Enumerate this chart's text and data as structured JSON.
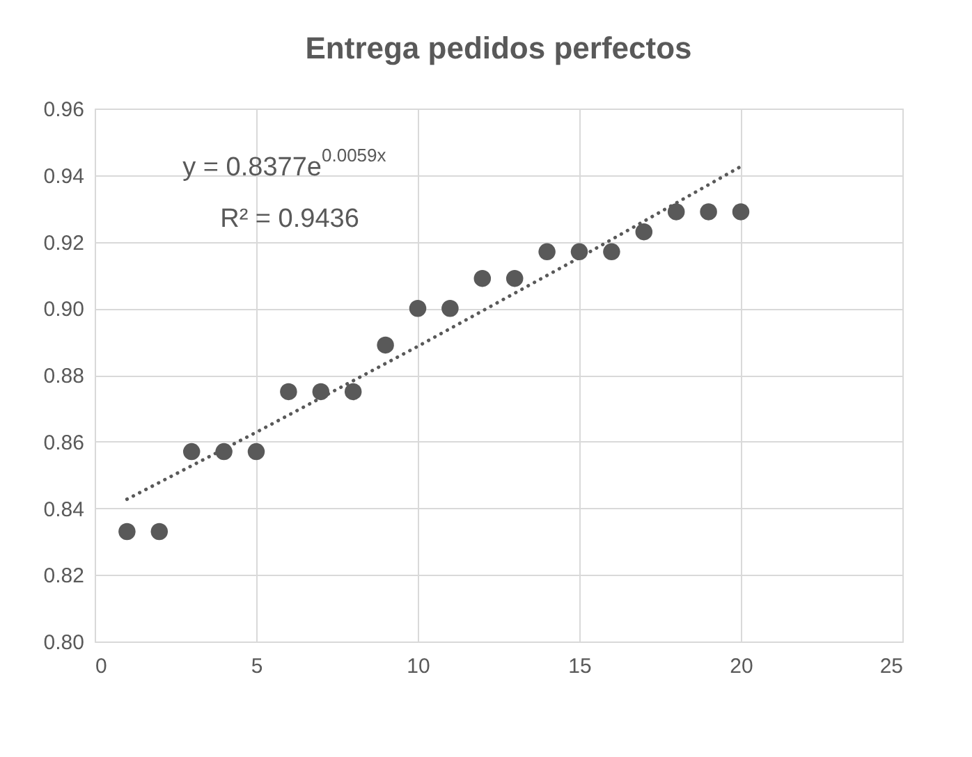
{
  "chart_data": {
    "type": "scatter",
    "title": "Entrega pedidos perfectos",
    "x": [
      1,
      2,
      3,
      4,
      5,
      6,
      7,
      8,
      9,
      10,
      11,
      12,
      13,
      14,
      15,
      16,
      17,
      18,
      19,
      20
    ],
    "series": [
      {
        "color": "#595959",
        "marker": "circle",
        "values": [
          0.833,
          0.833,
          0.857,
          0.857,
          0.857,
          0.875,
          0.875,
          0.875,
          0.889,
          0.9,
          0.9,
          0.909,
          0.909,
          0.917,
          0.917,
          0.917,
          0.923,
          0.929,
          0.929,
          0.929
        ]
      },
      {
        "type": "line",
        "color": "#595959",
        "line_style": "dotted",
        "marker": "none",
        "x": [
          1,
          5,
          10,
          15,
          20
        ],
        "values": [
          0.8427,
          0.8628,
          0.8886,
          0.9152,
          0.9426
        ]
      }
    ],
    "annotations": [
      "y = 0.8377e$^{0.0059x}$",
      "R² = 0.9436"
    ],
    "xlim": [
      0,
      25
    ],
    "xticks": [
      0,
      5,
      10,
      15,
      20,
      25
    ],
    "ylim": [
      0.8,
      0.96
    ],
    "yticks": [
      {
        "value": 0.8,
        "label": "0.80"
      },
      {
        "value": 0.82,
        "label": "0.82"
      },
      {
        "value": 0.84,
        "label": "0.84"
      },
      {
        "value": 0.86,
        "label": "0.86"
      },
      {
        "value": 0.88,
        "label": "0.88"
      },
      {
        "value": 0.9,
        "label": "0.90"
      },
      {
        "value": 0.92,
        "label": "0.92"
      },
      {
        "value": 0.94,
        "label": "0.94"
      },
      {
        "value": 0.96,
        "label": "0.96"
      }
    ],
    "grid": true
  }
}
